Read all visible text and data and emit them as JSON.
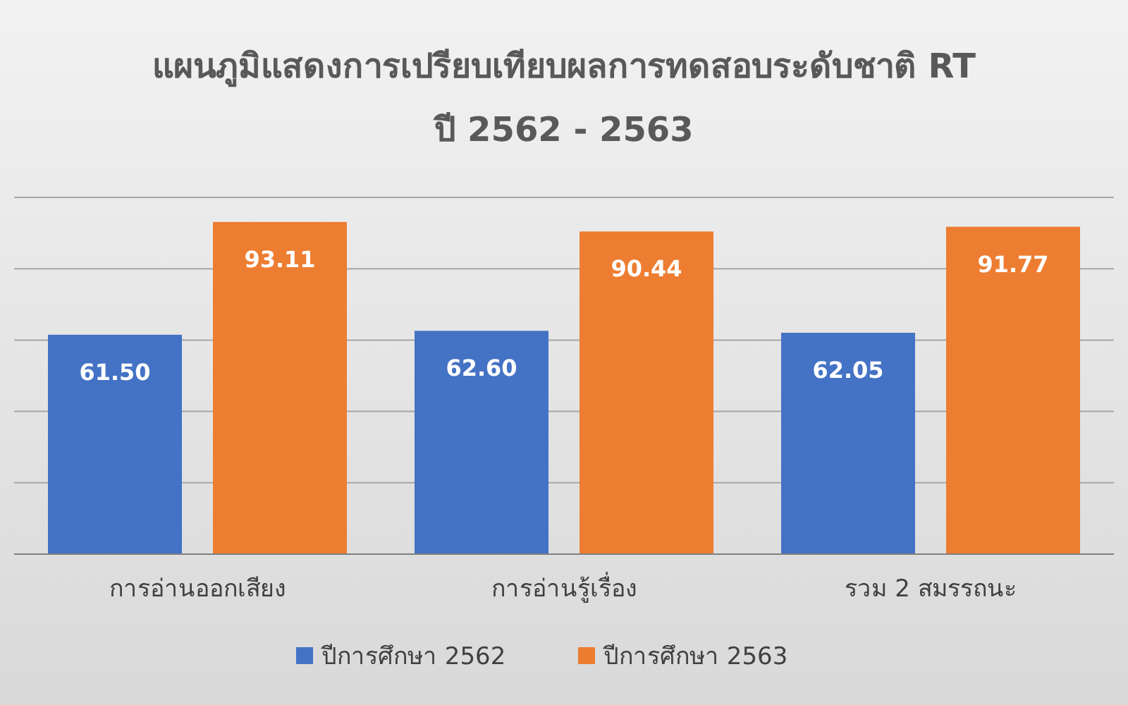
{
  "chart_data": {
    "type": "bar",
    "title": "แผนภูมิแสดงการเปรียบเทียบผลการทดสอบระดับชาติ RT",
    "subtitle": "ปี 2562 - 2563",
    "categories": [
      "การอ่านออกเสียง",
      "การอ่านรู้เรื่อง",
      "รวม 2 สมรรถนะ"
    ],
    "series": [
      {
        "name": "ปีการศึกษา 2562",
        "color": "#4472c4",
        "values": [
          61.5,
          62.6,
          62.05
        ],
        "value_labels": [
          "61.50",
          "62.60",
          "62.05"
        ]
      },
      {
        "name": "ปีการศึกษา 2563",
        "color": "#ed7d31",
        "values": [
          93.11,
          90.44,
          91.77
        ],
        "value_labels": [
          "93.11",
          "90.44",
          "91.77"
        ]
      }
    ],
    "ylim": [
      0,
      100
    ],
    "yticks": [
      {
        "value": 0,
        "label": null
      },
      {
        "value": 20,
        "label": null
      },
      {
        "value": 40,
        "label": null
      },
      {
        "value": 60,
        "label": null
      },
      {
        "value": 80,
        "label": null
      },
      {
        "value": 100,
        "label": null
      }
    ],
    "tick_labels": "x",
    "grid": "y",
    "legend": "bottom"
  }
}
